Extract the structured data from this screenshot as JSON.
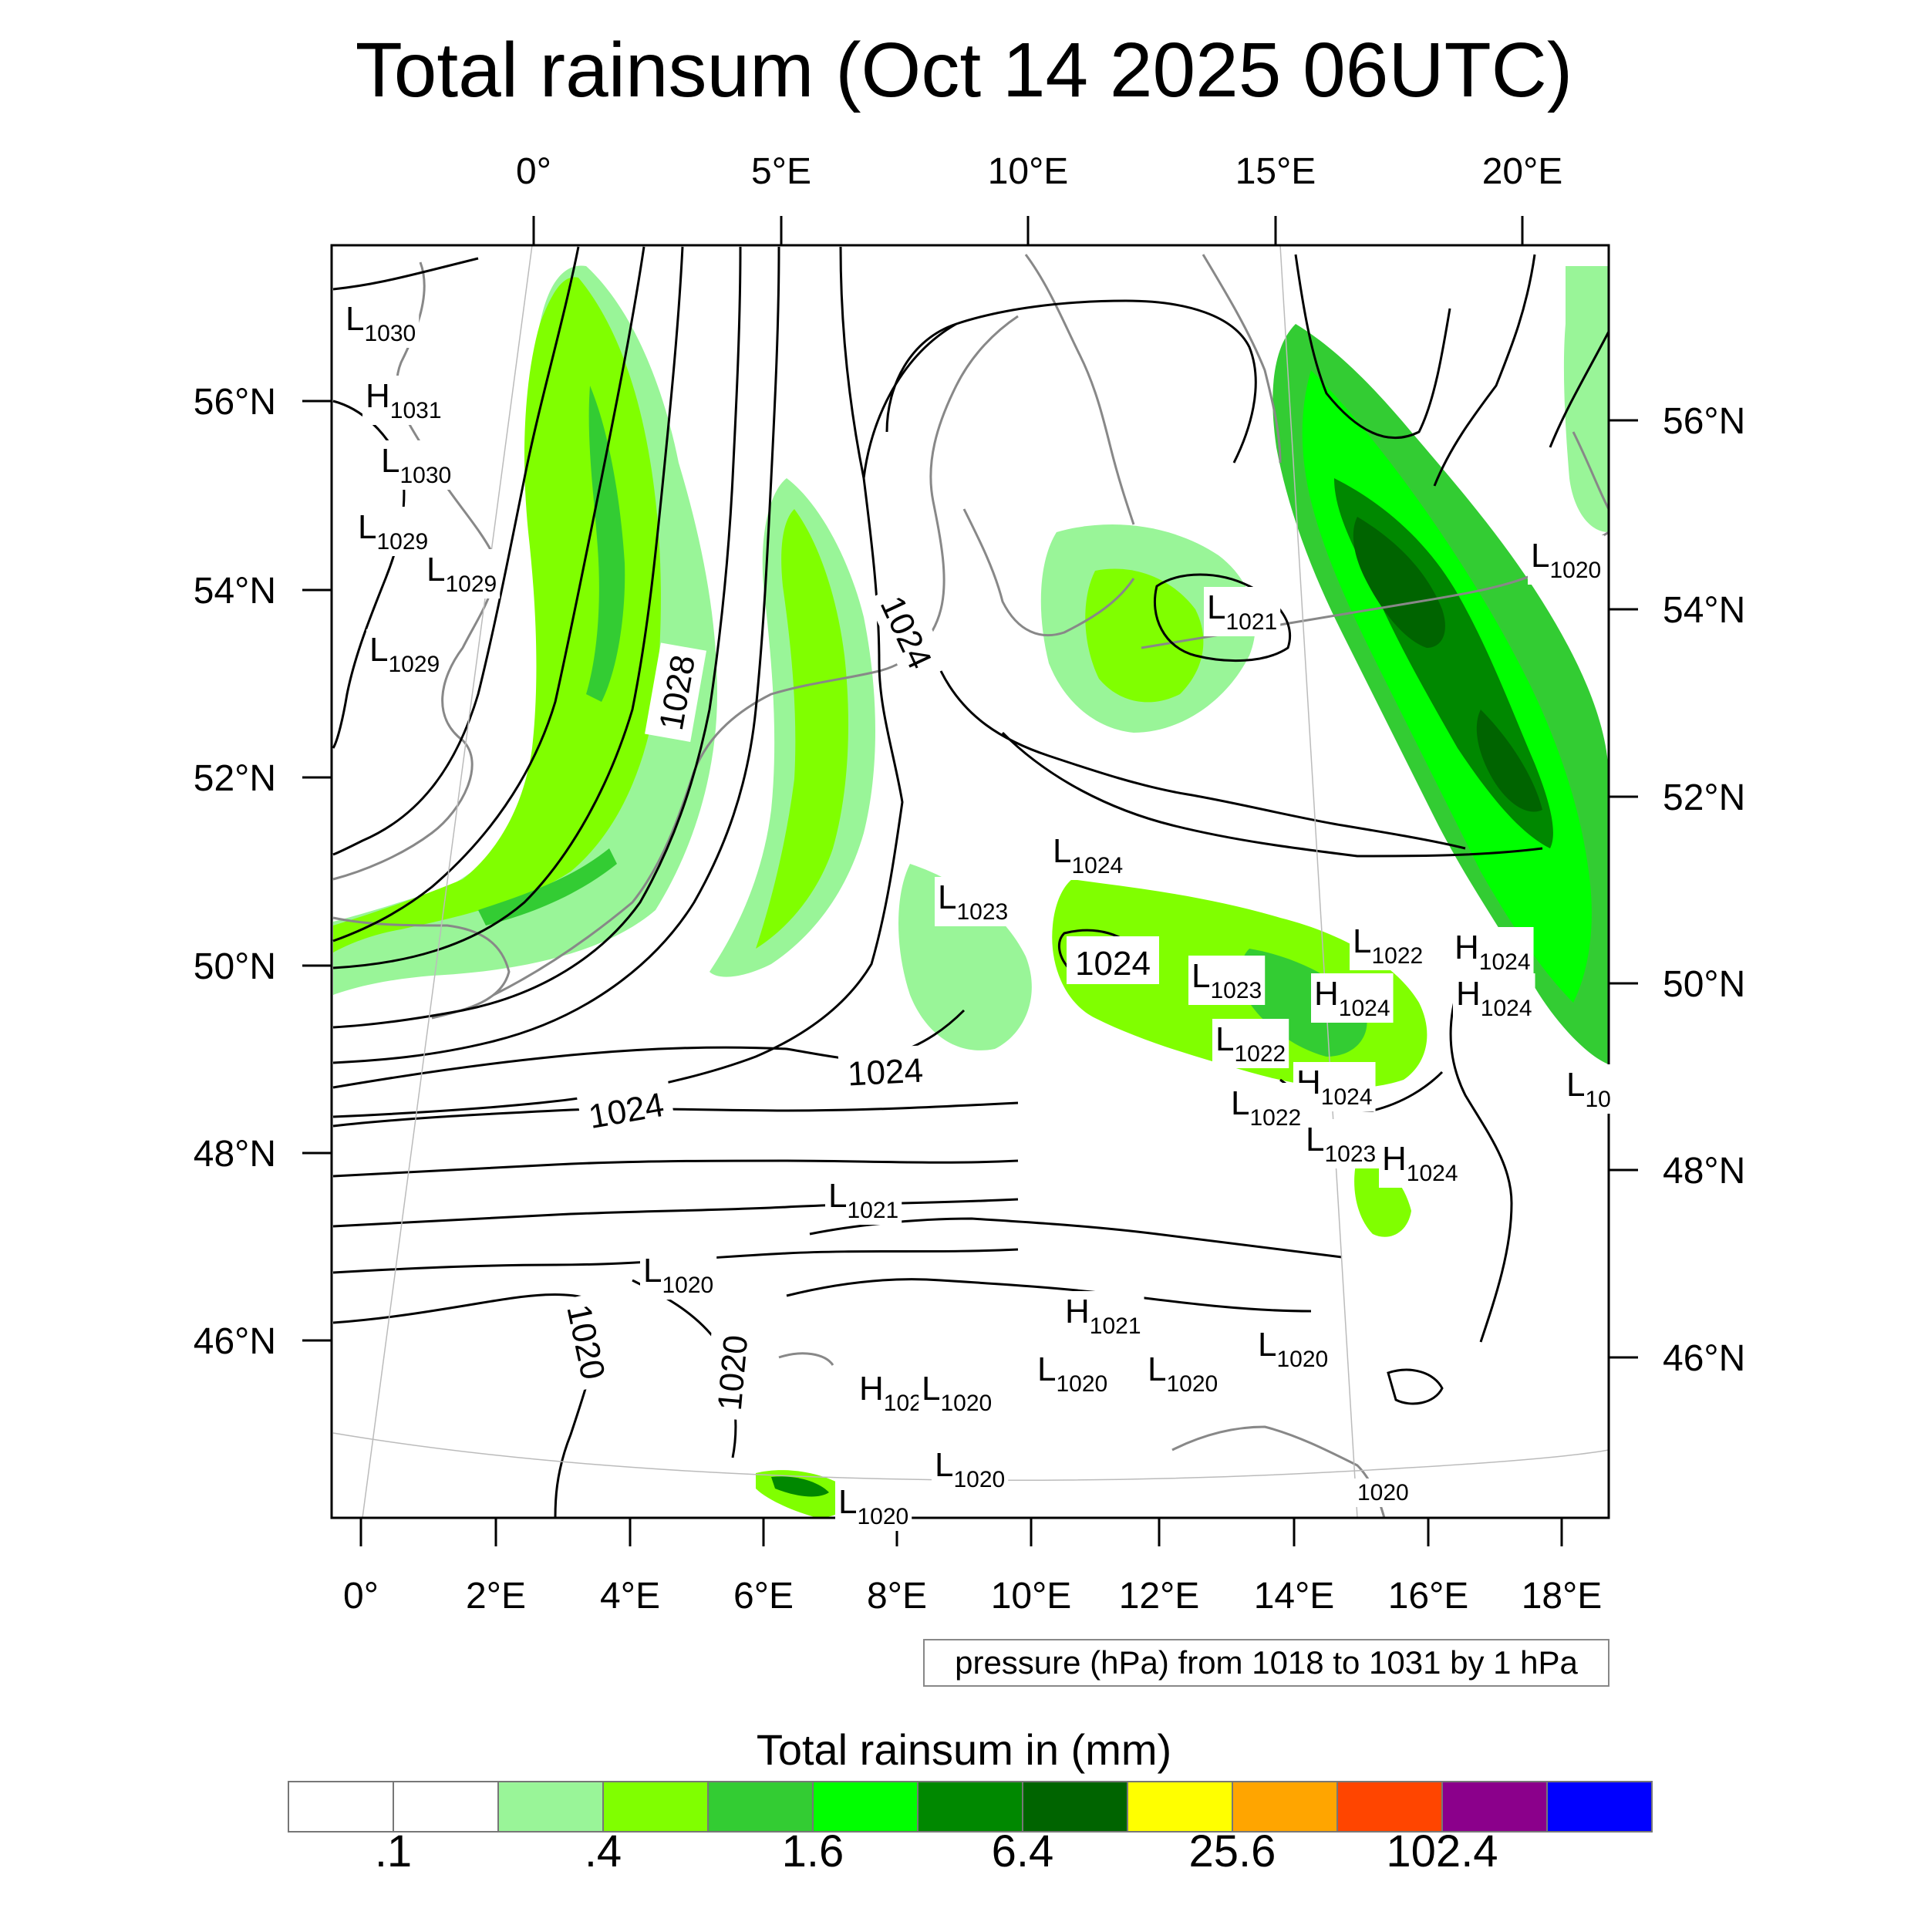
{
  "title": "Total rainsum (Oct 14 2025 06UTC)",
  "top_longitude_ticks": [
    "0°",
    "5°E",
    "10°E",
    "15°E",
    "20°E"
  ],
  "bottom_longitude_ticks": [
    "0°",
    "2°E",
    "4°E",
    "6°E",
    "8°E",
    "10°E",
    "12°E",
    "14°E",
    "16°E",
    "18°E"
  ],
  "left_latitude_ticks": [
    "56°N",
    "54°N",
    "52°N",
    "50°N",
    "48°N",
    "46°N"
  ],
  "right_latitude_ticks": [
    "56°N",
    "54°N",
    "52°N",
    "50°N",
    "48°N",
    "46°N"
  ],
  "pressure_note": "pressure (hPa) from 1018 to 1031 by 1 hPa",
  "colorbar": {
    "title": "Total rainsum in (mm)",
    "colors": [
      "#ffffff",
      "#ffffff",
      "#99f598",
      "#80ff00",
      "#33cc33",
      "#00ff00",
      "#008800",
      "#006400",
      "#ffff00",
      "#ffa500",
      "#ff4500",
      "#8b008b",
      "#0000ff"
    ],
    "tick_labels": [
      ".1",
      ".4",
      "1.6",
      "6.4",
      "25.6",
      "102.4"
    ]
  },
  "contour_labels": [
    "1028",
    "1024",
    "1024",
    "1024",
    "1024",
    "1020",
    "1020"
  ],
  "pressure_systems": [
    {
      "type": "L",
      "value": "1030"
    },
    {
      "type": "H",
      "value": "1031"
    },
    {
      "type": "L",
      "value": "1030"
    },
    {
      "type": "L",
      "value": "1029"
    },
    {
      "type": "L",
      "value": "1029"
    },
    {
      "type": "L",
      "value": "1029"
    },
    {
      "type": "L",
      "value": "1021"
    },
    {
      "type": "L",
      "value": "1020"
    },
    {
      "type": "L",
      "value": "1023"
    },
    {
      "type": "L",
      "value": "1024"
    },
    {
      "type": "L",
      "value": "1023"
    },
    {
      "type": "L",
      "value": "1022"
    },
    {
      "type": "H",
      "value": "1024"
    },
    {
      "type": "H",
      "value": "1024"
    },
    {
      "type": "L",
      "value": "1022"
    },
    {
      "type": "H",
      "value": "1024"
    },
    {
      "type": "H",
      "value": "1024"
    },
    {
      "type": "L",
      "value": "1022"
    },
    {
      "type": "L",
      "value": "1023"
    },
    {
      "type": "H",
      "value": "1024"
    },
    {
      "type": "L",
      "value": "10"
    },
    {
      "type": "L",
      "value": "1021"
    },
    {
      "type": "L",
      "value": "1020"
    },
    {
      "type": "H",
      "value": "1021"
    },
    {
      "type": "L",
      "value": "1020"
    },
    {
      "type": "L",
      "value": "1020"
    },
    {
      "type": "L",
      "value": "1020"
    },
    {
      "type": "H",
      "value": "102"
    },
    {
      "type": "L",
      "value": "1020"
    },
    {
      "type": "L",
      "value": "1020"
    },
    {
      "type": "L",
      "value": "1020"
    },
    {
      "type": "L",
      "value": "1020"
    }
  ]
}
